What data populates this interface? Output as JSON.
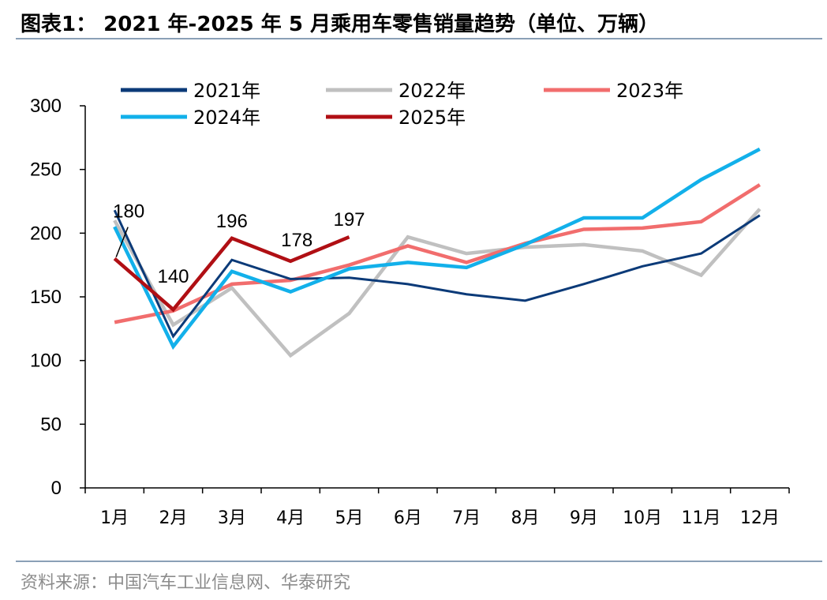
{
  "title": "图表1： 2021 年-2025 年 5 月乘用车零售销量趋势（单位、万辆）",
  "source": "资料来源：中国汽车工业信息网、华泰研究",
  "chart_data": {
    "type": "line",
    "title": "图表1： 2021 年-2025 年 5 月乘用车零售销量趋势（单位、万辆）",
    "xlabel": "",
    "ylabel": "",
    "categories": [
      "1月",
      "2月",
      "3月",
      "4月",
      "5月",
      "6月",
      "7月",
      "8月",
      "9月",
      "10月",
      "11月",
      "12月"
    ],
    "yticks": [
      "0",
      "50",
      "100",
      "150",
      "200",
      "250",
      "300"
    ],
    "ylim": [
      0,
      300
    ],
    "grid": false,
    "legend": "top",
    "series": [
      {
        "name": "2021年",
        "color": "#0b3a78",
        "values": [
          218,
          119,
          179,
          164,
          165,
          160,
          152,
          147,
          160,
          174,
          184,
          214
        ]
      },
      {
        "name": "2022年",
        "color": "#c0c0c0",
        "values": [
          210,
          128,
          157,
          104,
          137,
          197,
          184,
          189,
          191,
          186,
          167,
          219
        ]
      },
      {
        "name": "2023年",
        "color": "#f16d6d",
        "values": [
          130,
          139,
          160,
          163,
          175,
          190,
          177,
          192,
          203,
          204,
          209,
          238
        ]
      },
      {
        "name": "2024年",
        "color": "#12b0ea",
        "values": [
          205,
          111,
          170,
          154,
          172,
          177,
          173,
          191,
          212,
          212,
          242,
          266
        ]
      },
      {
        "name": "2025年",
        "color": "#b00f14",
        "values": [
          180,
          140,
          196,
          178,
          197,
          null,
          null,
          null,
          null,
          null,
          null,
          null
        ]
      }
    ],
    "data_labels": [
      {
        "series": "2025年",
        "category": "1月",
        "text": "180"
      },
      {
        "series": "2025年",
        "category": "2月",
        "text": "140"
      },
      {
        "series": "2025年",
        "category": "3月",
        "text": "196"
      },
      {
        "series": "2025年",
        "category": "4月",
        "text": "178"
      },
      {
        "series": "2025年",
        "category": "5月",
        "text": "197"
      }
    ]
  }
}
